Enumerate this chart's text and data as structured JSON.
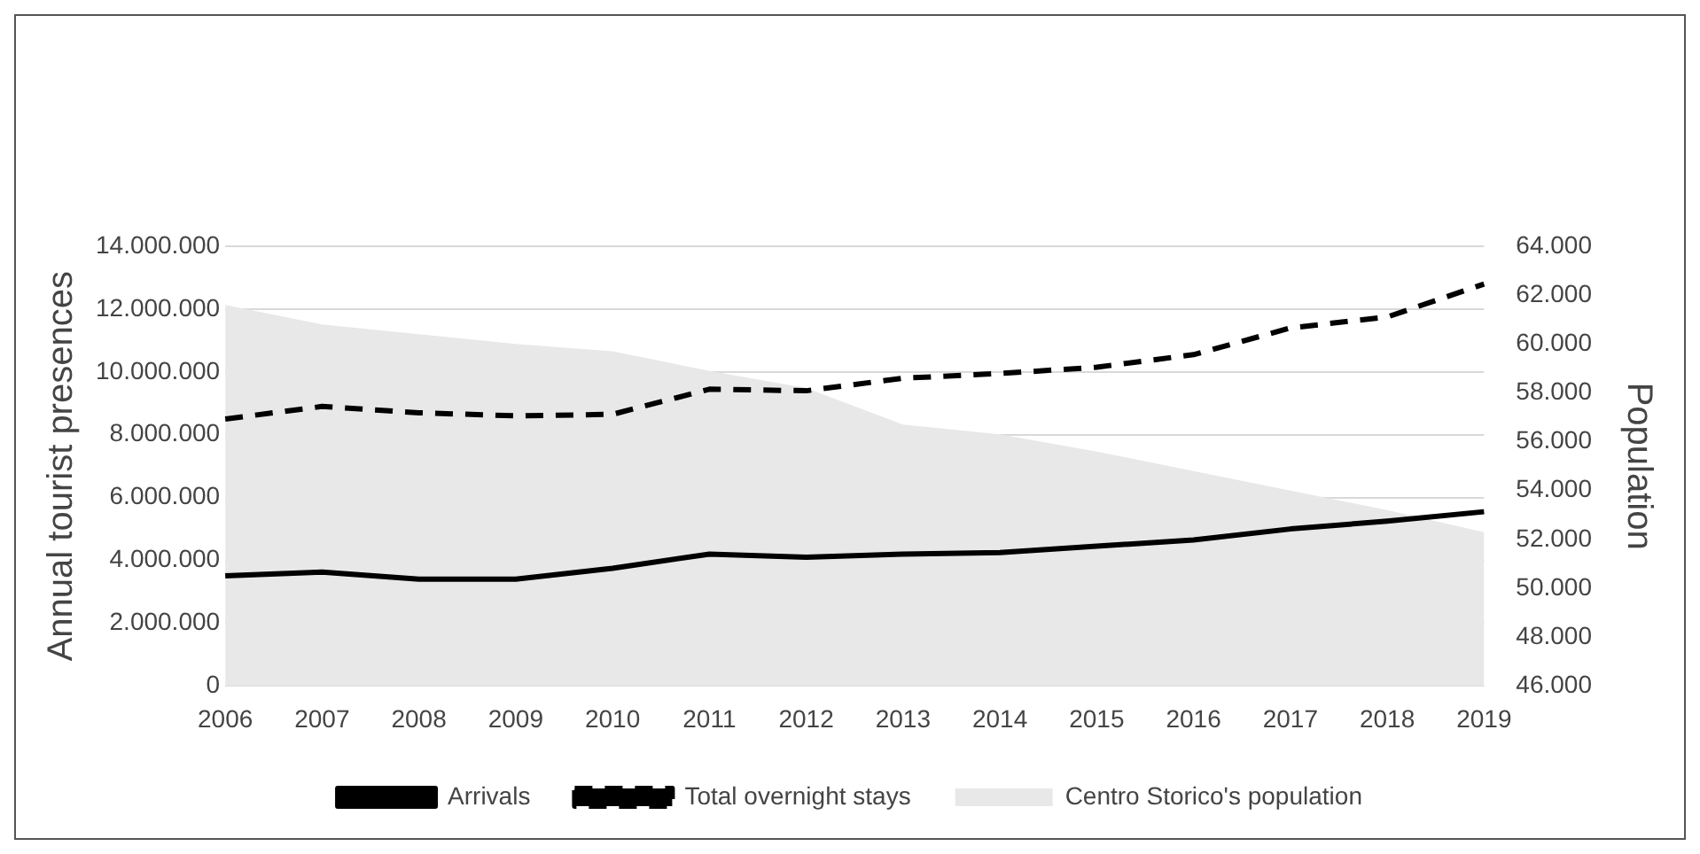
{
  "chart_data": {
    "type": "line",
    "ylabel": "Annual tourist presences",
    "y2label": "Population",
    "categories": [
      "2006",
      "2007",
      "2008",
      "2009",
      "2010",
      "2011",
      "2012",
      "2013",
      "2014",
      "2015",
      "2016",
      "2017",
      "2018",
      "2019"
    ],
    "series": [
      {
        "name": "Centro Storico's population",
        "type": "area",
        "axis": "y2",
        "color": "#e8e8e8",
        "values": [
          61600,
          60800,
          60400,
          60000,
          59700,
          58900,
          58200,
          56700,
          56300,
          55600,
          54800,
          54000,
          53200,
          52300
        ]
      },
      {
        "name": "Arrivals",
        "color": "#000000",
        "line_style": "solid",
        "values": [
          3510000,
          3630000,
          3400000,
          3400000,
          3750000,
          4200000,
          4100000,
          4200000,
          4250000,
          4450000,
          4650000,
          5000000,
          5250000,
          5550000
        ]
      },
      {
        "name": "Total overnight stays",
        "color": "#000000",
        "line_style": "dashed",
        "values": [
          8500000,
          8900000,
          8700000,
          8600000,
          8650000,
          9450000,
          9400000,
          9800000,
          9950000,
          10150000,
          10550000,
          11400000,
          11750000,
          12800000
        ]
      }
    ],
    "ylim": [
      0,
      14000000
    ],
    "yticks": [
      {
        "value": 0,
        "label": "0"
      },
      {
        "value": 2000000,
        "label": "2.000.000"
      },
      {
        "value": 4000000,
        "label": "4.000.000"
      },
      {
        "value": 6000000,
        "label": "6.000.000"
      },
      {
        "value": 8000000,
        "label": "8.000.000"
      },
      {
        "value": 10000000,
        "label": "10.000.000"
      },
      {
        "value": 12000000,
        "label": "12.000.000"
      },
      {
        "value": 14000000,
        "label": "14.000.000"
      }
    ],
    "y2lim": [
      46000,
      64000
    ],
    "y2ticks": [
      {
        "value": 46000,
        "label": "46.000"
      },
      {
        "value": 48000,
        "label": "48.000"
      },
      {
        "value": 50000,
        "label": "50.000"
      },
      {
        "value": 52000,
        "label": "52.000"
      },
      {
        "value": 54000,
        "label": "54.000"
      },
      {
        "value": 56000,
        "label": "56.000"
      },
      {
        "value": 58000,
        "label": "58.000"
      },
      {
        "value": 60000,
        "label": "60.000"
      },
      {
        "value": 62000,
        "label": "62.000"
      },
      {
        "value": 64000,
        "label": "64.000"
      }
    ],
    "grid": "y",
    "legend": "bottom",
    "marker": "none"
  }
}
